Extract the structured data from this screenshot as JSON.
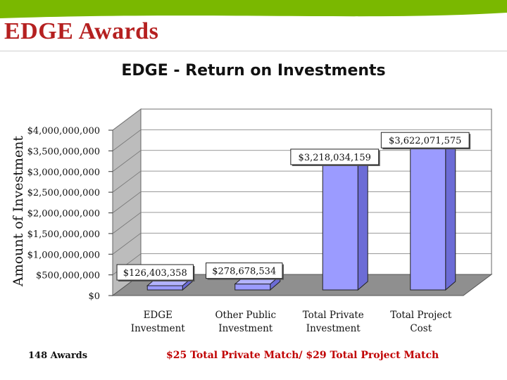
{
  "slide": {
    "title": "EDGE Awards",
    "awards_note": "148 Awards",
    "match_note": "$25 Total Private Match/ $29 Total Project Match"
  },
  "colors": {
    "title_red": "#b52020",
    "header_green": "#7ab800",
    "bar_front": "#9b9bff",
    "bar_side": "#6c6cd6",
    "bar_top": "#b3b3ff",
    "wall_back": "#ffffff",
    "wall_side": "#bcbcbc",
    "floor": "#8f8f8f",
    "note_red": "#c00000"
  },
  "chart_data": {
    "type": "bar",
    "title": "EDGE - Return on Investments",
    "ylabel": "Amount of Investment",
    "xlabel": "",
    "ylim": [
      0,
      4000000000
    ],
    "yticks": [
      "$0",
      "$500,000,000",
      "$1,000,000,000",
      "$1,500,000,000",
      "$2,000,000,000",
      "$2,500,000,000",
      "$3,000,000,000",
      "$3,500,000,000",
      "$4,000,000,000"
    ],
    "grid": true,
    "categories": [
      [
        "EDGE",
        "Investment"
      ],
      [
        "Other Public",
        "Investment"
      ],
      [
        "Total Private",
        "Investment"
      ],
      [
        "Total Project",
        "Cost"
      ]
    ],
    "values": [
      126403358,
      278678534,
      3218034159,
      3622071575
    ],
    "data_labels": [
      "$126,403,358",
      "$278,678,534",
      "$3,218,034,159",
      "$3,622,071,575"
    ]
  }
}
